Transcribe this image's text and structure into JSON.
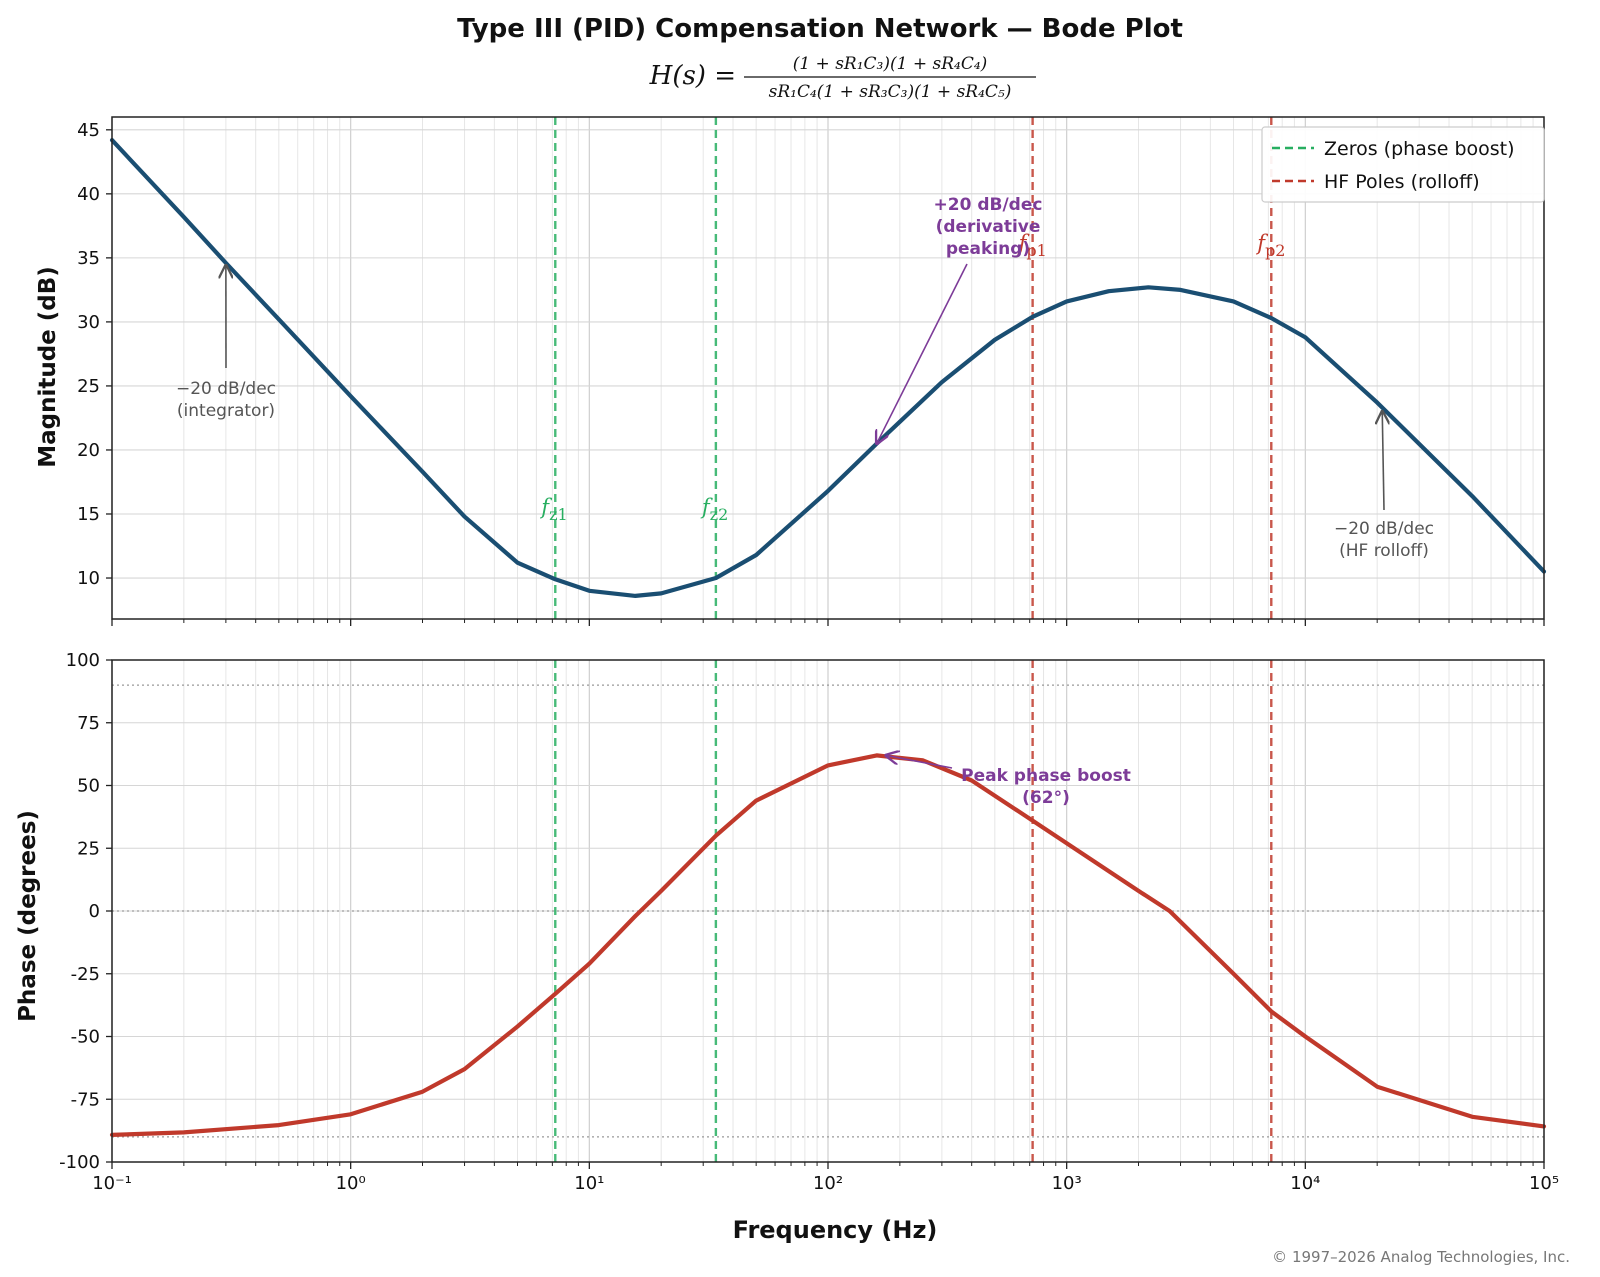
{
  "chart_data": {
    "type": "line",
    "title": "Type III (PID) Compensation Network — Bode Plot",
    "subtitle": {
      "lhs": "H(s) =",
      "numerator": "(1 + sR₁C₃)(1 + sR₄C₄)",
      "denominator": "sR₁C₄(1 + sR₃C₃)(1 + sR₄C₅)"
    },
    "xlabel": "Frequency (Hz)",
    "x_scale": "log",
    "xlim": [
      0.1,
      100000
    ],
    "x_tick_labels": [
      "10⁻¹",
      "10⁰",
      "10¹",
      "10²",
      "10³",
      "10⁴",
      "10⁵"
    ],
    "grid": true,
    "legend": {
      "position": "top-right",
      "entries": [
        {
          "label": "Zeros (phase boost)",
          "color": "#27ae60",
          "style": "dashed"
        },
        {
          "label": "HF Poles (rolloff)",
          "color": "#c0392b",
          "style": "dashed"
        }
      ]
    },
    "markers": [
      {
        "label": "fz1",
        "main": "f",
        "sub": "z1",
        "x": 7.2,
        "kind": "zero"
      },
      {
        "label": "fz2",
        "main": "f",
        "sub": "z2",
        "x": 33.9,
        "kind": "zero"
      },
      {
        "label": "fp1",
        "main": "f",
        "sub": "p1",
        "x": 720,
        "kind": "pole"
      },
      {
        "label": "fp2",
        "main": "f",
        "sub": "p2",
        "x": 7200,
        "kind": "pole"
      }
    ],
    "magnitude": {
      "ylabel": "Magnitude (dB)",
      "ylim": [
        6.8,
        46
      ],
      "yticks": [
        10,
        15,
        20,
        25,
        30,
        35,
        40,
        45
      ],
      "series_color": "#1a4e72",
      "points": [
        [
          0.1,
          44.2
        ],
        [
          0.2,
          38.2
        ],
        [
          0.3,
          34.6
        ],
        [
          0.5,
          30.2
        ],
        [
          1,
          24.2
        ],
        [
          2,
          18.3
        ],
        [
          3,
          14.8
        ],
        [
          5,
          11.2
        ],
        [
          7.2,
          9.9
        ],
        [
          10,
          9.0
        ],
        [
          15.6,
          8.6
        ],
        [
          20,
          8.8
        ],
        [
          33.9,
          10.0
        ],
        [
          50,
          11.8
        ],
        [
          100,
          16.8
        ],
        [
          160,
          20.5
        ],
        [
          200,
          22.2
        ],
        [
          300,
          25.3
        ],
        [
          500,
          28.6
        ],
        [
          720,
          30.4
        ],
        [
          1000,
          31.6
        ],
        [
          1500,
          32.4
        ],
        [
          2200,
          32.7
        ],
        [
          3000,
          32.5
        ],
        [
          5000,
          31.6
        ],
        [
          7200,
          30.3
        ],
        [
          10000,
          28.8
        ],
        [
          20000,
          23.7
        ],
        [
          50000,
          16.4
        ],
        [
          100000,
          10.5
        ]
      ],
      "annotations": [
        {
          "lines": [
            "−20 dB/dec",
            "(integrator)"
          ],
          "x": 0.3,
          "y": 34.4,
          "color": "gray"
        },
        {
          "lines": [
            "+20 dB/dec",
            "(derivative",
            "peaking)"
          ],
          "x": 160,
          "y": 20.5,
          "color": "purple"
        },
        {
          "lines": [
            "−20 dB/dec",
            "(HF rolloff)"
          ],
          "x": 21000,
          "y": 23.0,
          "color": "gray"
        }
      ]
    },
    "phase": {
      "ylabel": "Phase (degrees)",
      "ylim": [
        -100,
        100
      ],
      "yticks": [
        -100,
        -75,
        -50,
        -25,
        0,
        25,
        50,
        75,
        100
      ],
      "ytick_labels": [
        "-100",
        "-75",
        "-50",
        "-25",
        "0",
        "25",
        "50",
        "75",
        "100"
      ],
      "reference_lines": [
        90,
        0,
        -90
      ],
      "series_color": "#c0392b",
      "points": [
        [
          0.1,
          -89.2
        ],
        [
          0.2,
          -88.2
        ],
        [
          0.5,
          -85.3
        ],
        [
          1,
          -81
        ],
        [
          2,
          -72
        ],
        [
          3,
          -63
        ],
        [
          5,
          -46
        ],
        [
          7.2,
          -33
        ],
        [
          10,
          -21
        ],
        [
          15.6,
          -2
        ],
        [
          20,
          8
        ],
        [
          33.9,
          30
        ],
        [
          50,
          44
        ],
        [
          100,
          58
        ],
        [
          160,
          62
        ],
        [
          250,
          60
        ],
        [
          400,
          52
        ],
        [
          720,
          36
        ],
        [
          1000,
          27
        ],
        [
          2000,
          8
        ],
        [
          2700,
          0
        ],
        [
          5000,
          -25
        ],
        [
          7200,
          -40
        ],
        [
          10000,
          -50
        ],
        [
          20000,
          -70
        ],
        [
          50000,
          -82
        ],
        [
          100000,
          -85.8
        ]
      ],
      "annotations": [
        {
          "lines": [
            "Peak phase boost",
            "(62°)"
          ],
          "x": 175,
          "y": 62,
          "color": "purple"
        }
      ]
    }
  },
  "footer": {
    "copyright": "© 1997–2026 Analog Technologies, Inc."
  },
  "colors": {
    "magnitude": "#1a4e72",
    "phase": "#c0392b",
    "zero": "#27ae60",
    "pole": "#c0392b",
    "annotation_purple": "#7d3c98",
    "annotation_gray": "#555555"
  }
}
